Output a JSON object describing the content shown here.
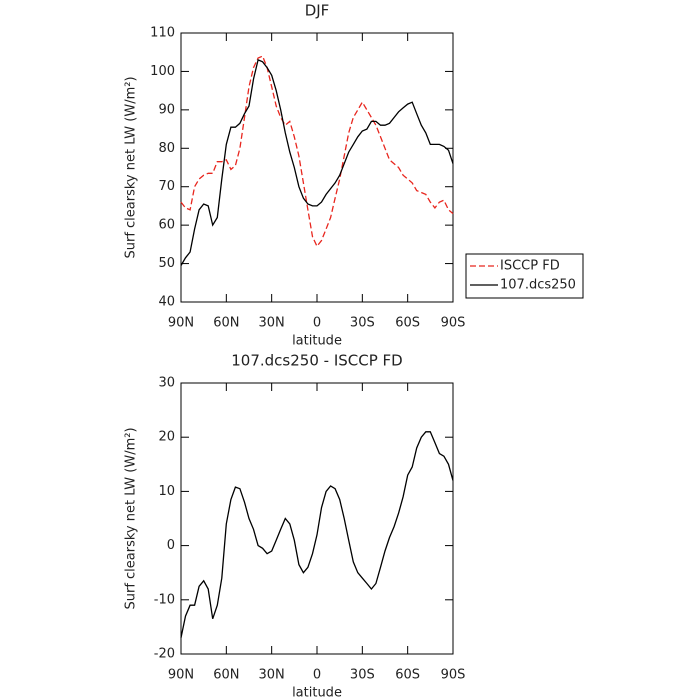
{
  "chart_data": [
    {
      "type": "line",
      "title": "DJF",
      "xlabel": "latitude",
      "ylabel": "Surf clearsky net LW (W/m²)",
      "x": [
        90,
        87,
        84,
        81,
        78,
        75,
        72,
        69,
        66,
        63,
        60,
        57,
        54,
        51,
        48,
        45,
        42,
        39,
        36,
        33,
        30,
        27,
        24,
        21,
        18,
        15,
        12,
        9,
        6,
        3,
        0,
        -3,
        -6,
        -9,
        -12,
        -15,
        -18,
        -21,
        -24,
        -27,
        -30,
        -33,
        -36,
        -39,
        -42,
        -45,
        -48,
        -51,
        -54,
        -57,
        -60,
        -63,
        -66,
        -69,
        -72,
        -75,
        -78,
        -81,
        -84,
        -87,
        -90
      ],
      "series": [
        {
          "name": "ISCCP FD",
          "color": "#e8261e",
          "linestyle": "dashed",
          "values": [
            66,
            64.5,
            64,
            70,
            72,
            73,
            73.5,
            73.5,
            76.5,
            76.5,
            77,
            74.5,
            75.5,
            80,
            88,
            96,
            101,
            103.5,
            104,
            101,
            96,
            91,
            88,
            86,
            87,
            83,
            78,
            71,
            64,
            57,
            54.5,
            56,
            59,
            62,
            67,
            72,
            78,
            84,
            88,
            90,
            92,
            90,
            88,
            86,
            83,
            80,
            77,
            76,
            75,
            73,
            72,
            71,
            69,
            68.5,
            68,
            66,
            64.5,
            66,
            66.5,
            64,
            63
          ]
        },
        {
          "name": "107.dcs250",
          "color": "#000000",
          "linestyle": "solid",
          "values": [
            49.5,
            51.5,
            53,
            59,
            64,
            65.5,
            65,
            60,
            62,
            72,
            81,
            85.5,
            85.5,
            86.5,
            89,
            91,
            98,
            103,
            102.5,
            101,
            99,
            95,
            90,
            84,
            79,
            75,
            70,
            67,
            65.5,
            65,
            65,
            66,
            68,
            69.5,
            71,
            73,
            76,
            79,
            81,
            83,
            84.5,
            85,
            87,
            87,
            86,
            86,
            86.5,
            88,
            89.5,
            90.5,
            91.5,
            92,
            89,
            86,
            84,
            81,
            81,
            81,
            80.5,
            79.5,
            76
          ]
        }
      ],
      "xlim": [
        90,
        -90
      ],
      "xticks": [
        {
          "value": 90,
          "label": "90N"
        },
        {
          "value": 60,
          "label": "60N"
        },
        {
          "value": 30,
          "label": "30N"
        },
        0,
        {
          "value": -30,
          "label": "30S"
        },
        {
          "value": -60,
          "label": "60S"
        },
        {
          "value": -90,
          "label": "90S"
        }
      ],
      "ylim": [
        40,
        110
      ],
      "yticks": [
        40,
        50,
        60,
        70,
        80,
        90,
        100,
        110
      ],
      "legend": "outside-right"
    },
    {
      "type": "line",
      "title": "107.dcs250 - ISCCP FD",
      "xlabel": "latitude",
      "ylabel": "Surf clearsky net LW (W/m²)",
      "x": [
        90,
        87,
        84,
        81,
        78,
        75,
        72,
        69,
        66,
        63,
        60,
        57,
        54,
        51,
        48,
        45,
        42,
        39,
        36,
        33,
        30,
        27,
        24,
        21,
        18,
        15,
        12,
        9,
        6,
        3,
        0,
        -3,
        -6,
        -9,
        -12,
        -15,
        -18,
        -21,
        -24,
        -27,
        -30,
        -33,
        -36,
        -39,
        -42,
        -45,
        -48,
        -51,
        -54,
        -57,
        -60,
        -63,
        -66,
        -69,
        -72,
        -75,
        -78,
        -81,
        -84,
        -87,
        -90
      ],
      "values": [
        -17,
        -13,
        -11,
        -11,
        -7.5,
        -6.5,
        -8,
        -13.5,
        -11,
        -6,
        4,
        8.5,
        10.8,
        10.5,
        8,
        5,
        3,
        0,
        -0.5,
        -1.5,
        -1,
        1,
        3,
        5,
        4,
        1,
        -3.5,
        -5,
        -4,
        -1.5,
        2,
        7,
        10,
        11,
        10.5,
        8.5,
        5,
        1,
        -3,
        -5,
        -6,
        -7,
        -8,
        -7,
        -4,
        -1,
        1.5,
        3.5,
        6,
        9,
        13,
        14.5,
        18,
        20,
        21,
        21,
        19,
        17,
        16.5,
        15,
        12
      ],
      "color": "#000000",
      "xlim": [
        90,
        -90
      ],
      "xticks": [
        {
          "value": 90,
          "label": "90N"
        },
        {
          "value": 60,
          "label": "60N"
        },
        {
          "value": 30,
          "label": "30N"
        },
        0,
        {
          "value": -30,
          "label": "30S"
        },
        {
          "value": -60,
          "label": "60S"
        },
        {
          "value": -90,
          "label": "90S"
        }
      ],
      "ylim": [
        -20,
        30
      ],
      "yticks": [
        -20,
        -10,
        0,
        10,
        20,
        30
      ]
    }
  ]
}
